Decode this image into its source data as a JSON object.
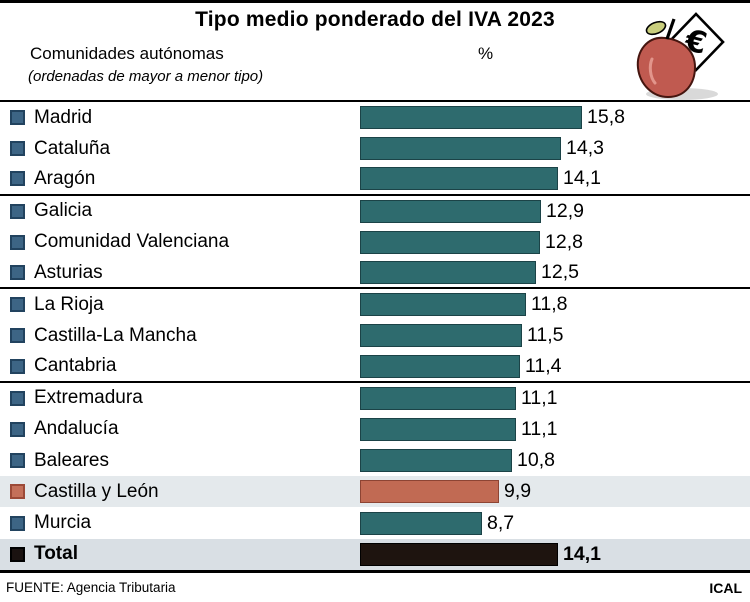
{
  "header": {
    "title": "Tipo medio ponderado del IVA 2023",
    "col_regions": "Comunidades autónomas",
    "col_regions_note": "(ordenadas de mayor a menor tipo)",
    "col_percent": "%"
  },
  "icons": {
    "logo": "apple-euro-icon"
  },
  "footer": {
    "source": "FUENTE: Agencia Tributaria",
    "credit": "ICAL"
  },
  "colors": {
    "bar_teal": "#2e6b6e",
    "bar_teal_border": "#1b4347",
    "bar_red": "#c16a53",
    "bar_red_border": "#8d4433",
    "bar_black": "#1e140f",
    "bar_black_border": "#000000",
    "bullet_blue": "#3d6585",
    "bullet_blue_border": "#22435f",
    "bullet_red": "#c4705a",
    "bullet_red_border": "#9c4a38",
    "bullet_black": "#1a1210",
    "bullet_black_border": "#000000",
    "row_highlight": "#e4e9ec",
    "row_total": "#d9dfe4",
    "apple_red": "#c05a50",
    "leaf_green": "#c9ce7d"
  },
  "chart_data": {
    "type": "bar",
    "orientation": "horizontal",
    "title": "Tipo medio ponderado del IVA 2023",
    "unit": "%",
    "xlim": [
      0,
      16
    ],
    "legend_note": "ordenadas de mayor a menor tipo",
    "categories": [
      "Madrid",
      "Cataluña",
      "Aragón",
      "Galicia",
      "Comunidad Valenciana",
      "Asturias",
      "La Rioja",
      "Castilla-La Mancha",
      "Cantabria",
      "Extremadura",
      "Andalucía",
      "Baleares",
      "Castilla y León",
      "Murcia",
      "Total"
    ],
    "values": [
      15.8,
      14.3,
      14.1,
      12.9,
      12.8,
      12.5,
      11.8,
      11.5,
      11.4,
      11.1,
      11.1,
      10.8,
      9.9,
      8.7,
      14.1
    ],
    "separator_after_indices": [
      2,
      5,
      8
    ],
    "rows": [
      {
        "label": "Madrid",
        "value": 15.8,
        "display": "15,8",
        "color": "teal"
      },
      {
        "label": "Cataluña",
        "value": 14.3,
        "display": "14,3",
        "color": "teal"
      },
      {
        "label": "Aragón",
        "value": 14.1,
        "display": "14,1",
        "color": "teal"
      },
      {
        "label": "Galicia",
        "value": 12.9,
        "display": "12,9",
        "color": "teal"
      },
      {
        "label": "Comunidad Valenciana",
        "value": 12.8,
        "display": "12,8",
        "color": "teal"
      },
      {
        "label": "Asturias",
        "value": 12.5,
        "display": "12,5",
        "color": "teal"
      },
      {
        "label": "La Rioja",
        "value": 11.8,
        "display": "11,8",
        "color": "teal"
      },
      {
        "label": "Castilla-La Mancha",
        "value": 11.5,
        "display": "11,5",
        "color": "teal"
      },
      {
        "label": "Cantabria",
        "value": 11.4,
        "display": "11,4",
        "color": "teal"
      },
      {
        "label": "Extremadura",
        "value": 11.1,
        "display": "11,1",
        "color": "teal"
      },
      {
        "label": "Andalucía",
        "value": 11.1,
        "display": "11,1",
        "color": "teal"
      },
      {
        "label": "Baleares",
        "value": 10.8,
        "display": "10,8",
        "color": "teal"
      },
      {
        "label": "Castilla y León",
        "value": 9.9,
        "display": "9,9",
        "color": "red",
        "bg": "highlight"
      },
      {
        "label": "Murcia",
        "value": 8.7,
        "display": "8,7",
        "color": "teal"
      },
      {
        "label": "Total",
        "value": 14.1,
        "display": "14,1",
        "color": "black",
        "bg": "total",
        "bold": true
      }
    ]
  }
}
